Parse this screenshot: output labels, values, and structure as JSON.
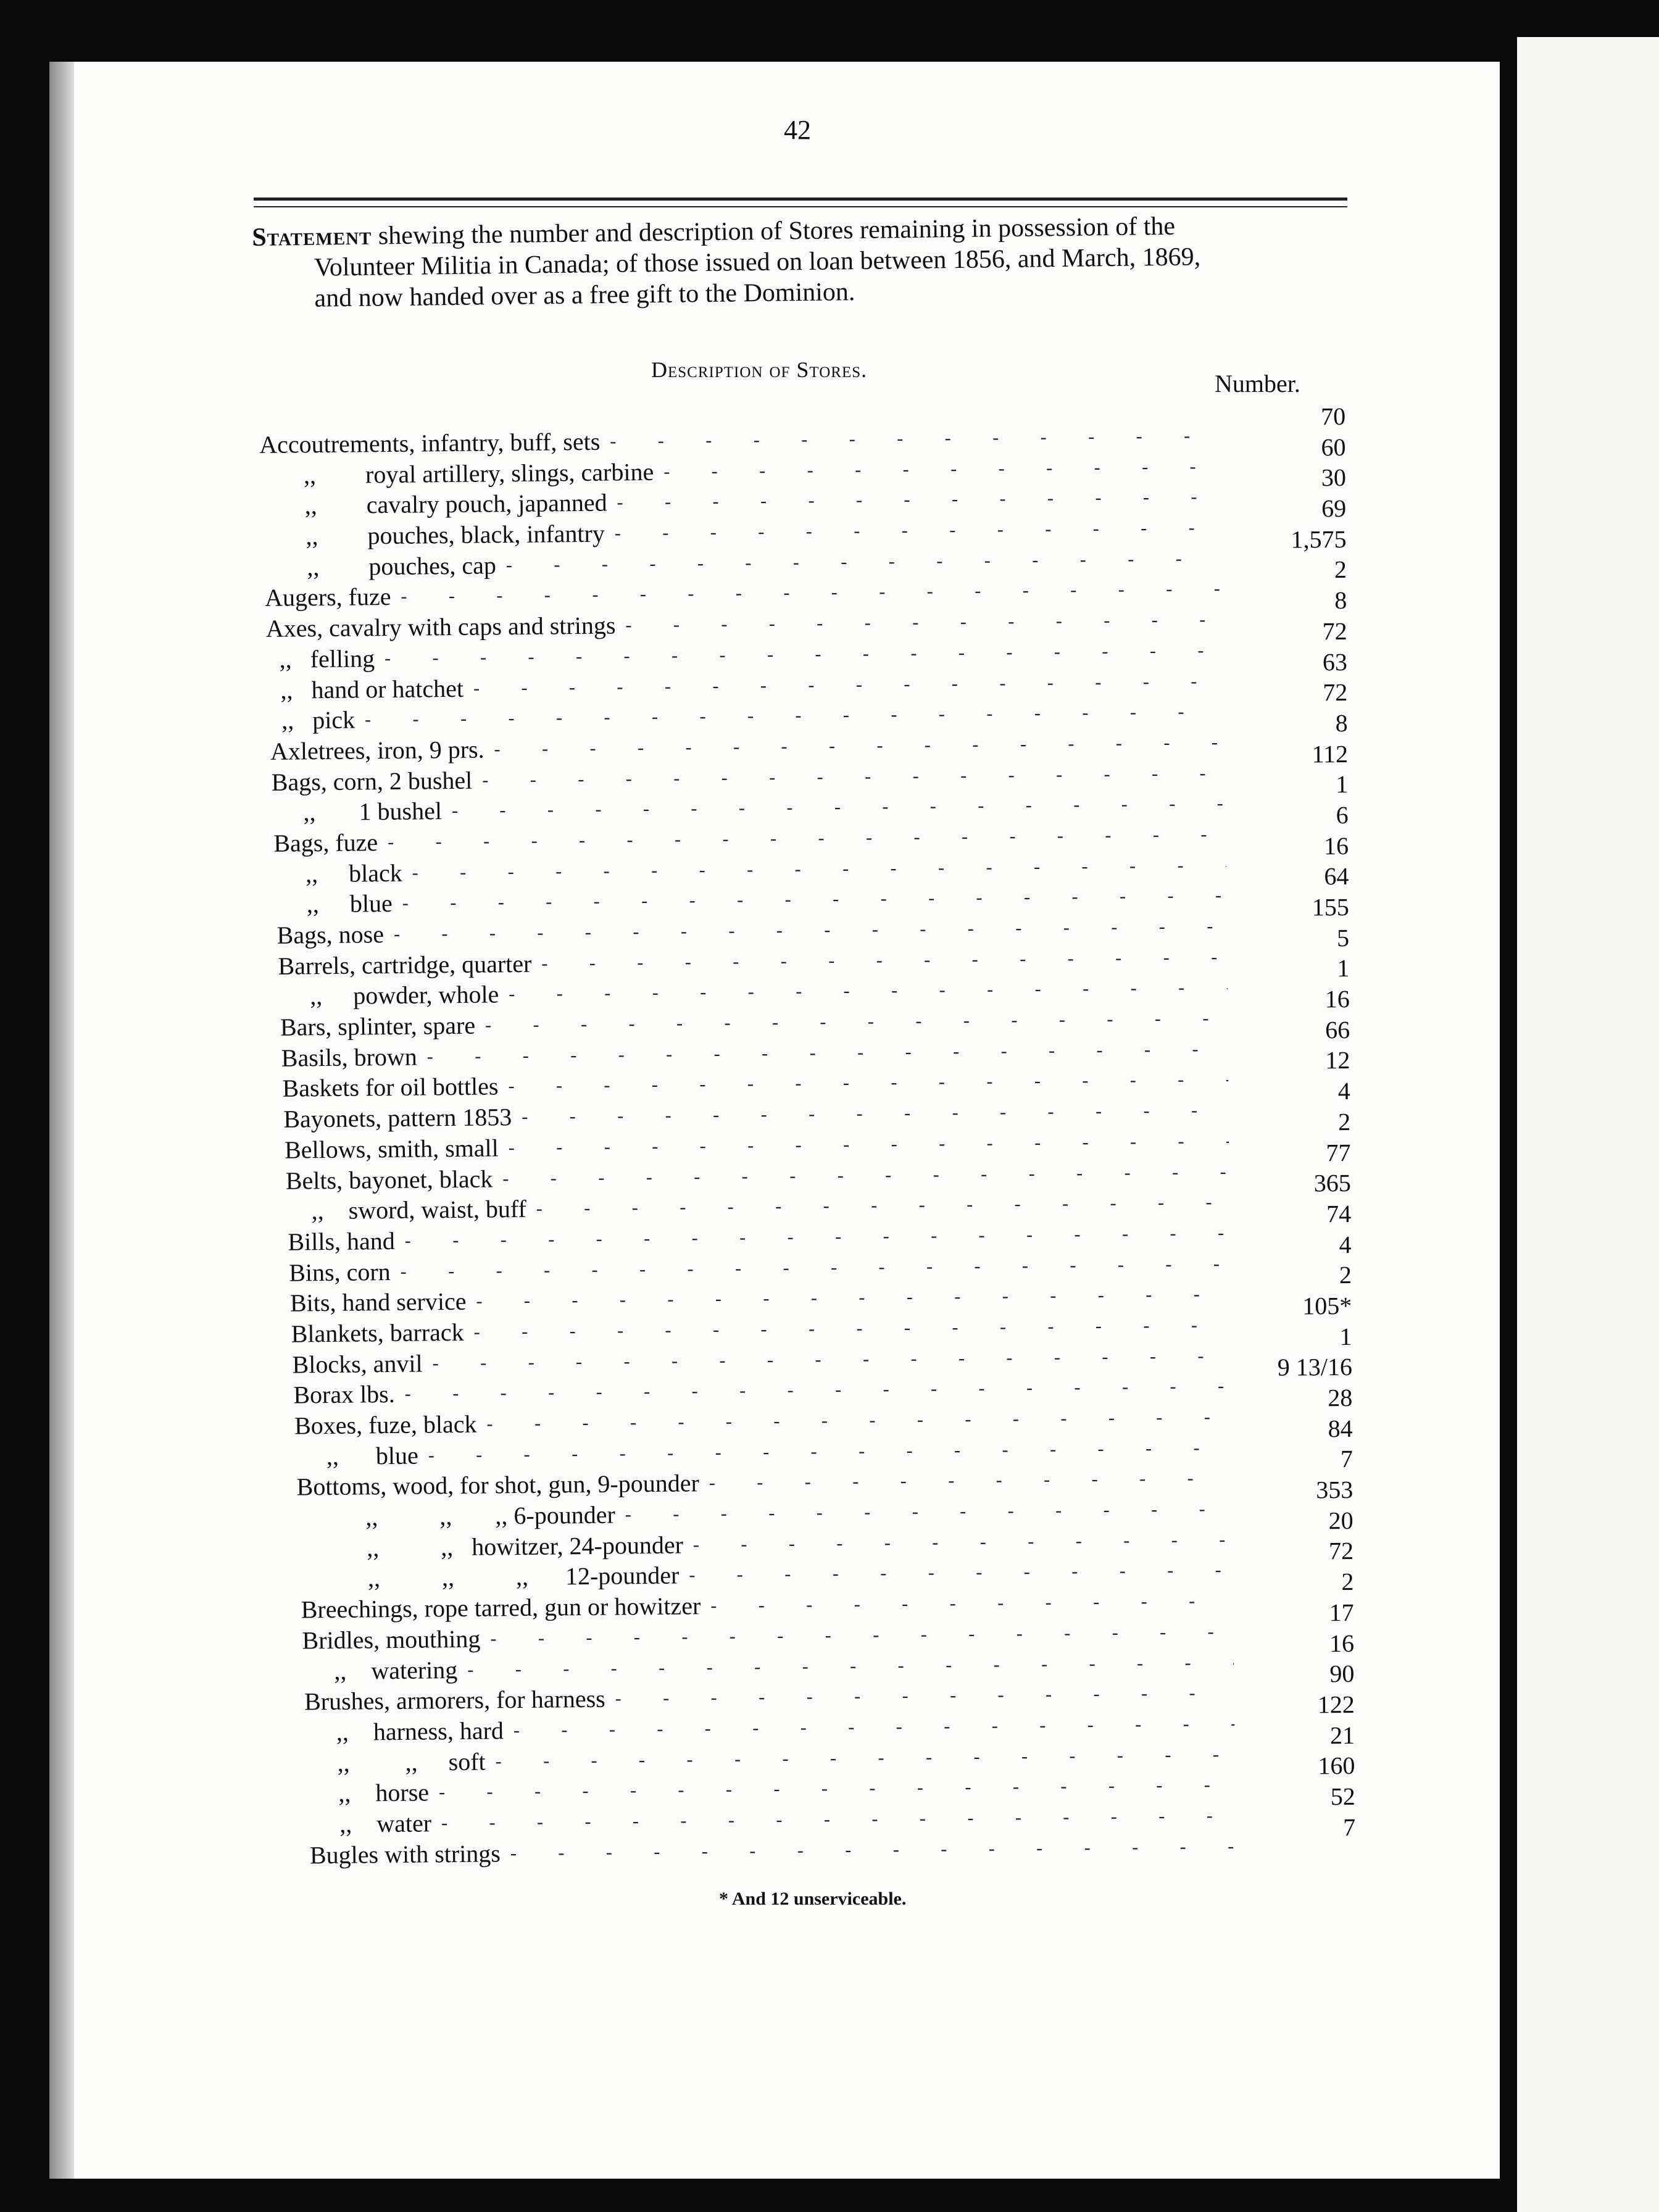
{
  "page_number": "42",
  "statement": {
    "lead": "Statement",
    "line1": "shewing the number and description of Stores remaining in possession of the",
    "line2": "Volunteer Militia in Canada; of those issued on loan between 1856, and March, 1869,",
    "line3": "and now handed over as a free gift to the Dominion."
  },
  "table": {
    "description_header": "Description of Stores.",
    "number_header": "Number.",
    "items": [
      {
        "lead": "Accoutrements,",
        "text": " infantry, buff, sets"
      },
      {
        "lead": "       ,,        ",
        "text": "royal artillery, slings, carbine"
      },
      {
        "lead": "       ,,        ",
        "text": "cavalry pouch, japanned"
      },
      {
        "lead": "       ,,        ",
        "text": "pouches, black, infantry"
      },
      {
        "lead": "       ,,        ",
        "text": "pouches, cap"
      },
      {
        "lead": "",
        "text": "Augers, fuze"
      },
      {
        "lead": "",
        "text": "Axes, cavalry with caps and strings"
      },
      {
        "lead": "  ,,   ",
        "text": "felling"
      },
      {
        "lead": "  ,,   ",
        "text": "hand or hatchet"
      },
      {
        "lead": "  ,,   ",
        "text": "pick"
      },
      {
        "lead": "",
        "text": "Axletrees, iron, 9 prs."
      },
      {
        "lead": "",
        "text": "Bags, corn, 2 bushel"
      },
      {
        "lead": "     ,,       ",
        "text": "1 bushel"
      },
      {
        "lead": "",
        "text": "Bags, fuze"
      },
      {
        "lead": "     ,,     ",
        "text": "black"
      },
      {
        "lead": "     ,,     ",
        "text": "blue"
      },
      {
        "lead": "",
        "text": "Bags, nose"
      },
      {
        "lead": "",
        "text": "Barrels, cartridge, quarter"
      },
      {
        "lead": "     ,,     ",
        "text": "powder, whole"
      },
      {
        "lead": "",
        "text": "Bars, splinter, spare"
      },
      {
        "lead": "",
        "text": "Basils, brown"
      },
      {
        "lead": "",
        "text": "Baskets for oil bottles"
      },
      {
        "lead": "",
        "text": "Bayonets, pattern 1853"
      },
      {
        "lead": "",
        "text": "Bellows, smith, small"
      },
      {
        "lead": "",
        "text": "Belts, bayonet, black"
      },
      {
        "lead": "    ,,    ",
        "text": "sword, waist, buff"
      },
      {
        "lead": "",
        "text": "Bills, hand"
      },
      {
        "lead": "",
        "text": "Bins, corn"
      },
      {
        "lead": "",
        "text": "Bits, hand service"
      },
      {
        "lead": "",
        "text": "Blankets, barrack"
      },
      {
        "lead": "",
        "text": "Blocks, anvil"
      },
      {
        "lead": "",
        "text": "Borax lbs."
      },
      {
        "lead": "",
        "text": "Boxes, fuze, black"
      },
      {
        "lead": "     ,,      ",
        "text": "blue"
      },
      {
        "lead": "",
        "text": "Bottoms, wood, for shot, gun, 9-pounder"
      },
      {
        "lead": "           ,,          ,,       ,, ",
        "text": "6-pounder"
      },
      {
        "lead": "           ,,          ,,   ",
        "text": "howitzer, 24-pounder"
      },
      {
        "lead": "           ,,          ,,          ,,      ",
        "text": "12-pounder"
      },
      {
        "lead": "",
        "text": "Breechings, rope tarred, gun or howitzer"
      },
      {
        "lead": "",
        "text": "Bridles, mouthing"
      },
      {
        "lead": "     ,,    ",
        "text": "watering"
      },
      {
        "lead": "",
        "text": "Brushes, armorers, for harness"
      },
      {
        "lead": "     ,,    ",
        "text": "harness, hard"
      },
      {
        "lead": "     ,,         ,,     ",
        "text": "soft"
      },
      {
        "lead": "     ,,    ",
        "text": "horse"
      },
      {
        "lead": "     ,,    ",
        "text": "water"
      },
      {
        "lead": "",
        "text": "Bugles with strings"
      }
    ],
    "numbers": [
      "70",
      "60",
      "30",
      "69",
      "1,575",
      "2",
      "8",
      "72",
      "63",
      "72",
      "8",
      "112",
      "1",
      "6",
      "16",
      "64",
      "155",
      "5",
      "1",
      "16",
      "66",
      "12",
      "4",
      "2",
      "77",
      "365",
      "74",
      "4",
      "2",
      "105*",
      "1",
      "9 13/16",
      "28",
      "84",
      "7",
      "353",
      "20",
      "72",
      "2",
      "17",
      "16",
      "90",
      "122",
      "21",
      "160",
      "52",
      "7"
    ]
  },
  "footnote": "* And 12 unserviceable."
}
